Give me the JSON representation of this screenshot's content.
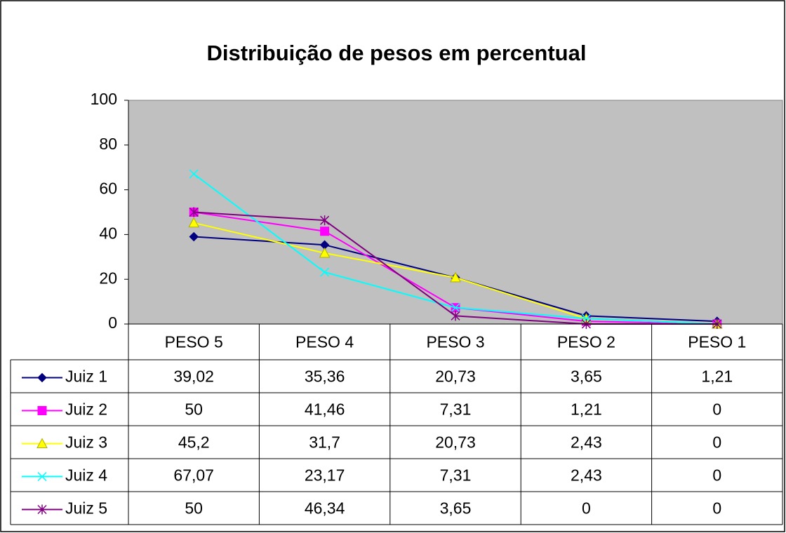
{
  "chart_data": {
    "type": "line",
    "title": "Distribuição de pesos em percentual",
    "categories": [
      "PESO 5",
      "PESO 4",
      "PESO 3",
      "PESO 2",
      "PESO 1"
    ],
    "ylim": [
      0,
      100
    ],
    "yticks": [
      0,
      20,
      40,
      60,
      80,
      100
    ],
    "series": [
      {
        "name": "Juiz 1",
        "color": "#000080",
        "marker": "diamond",
        "values": [
          39.02,
          35.36,
          20.73,
          3.65,
          1.21
        ],
        "value_labels": [
          "39,02",
          "35,36",
          "20,73",
          "3,65",
          "1,21"
        ]
      },
      {
        "name": "Juiz 2",
        "color": "#ff00ff",
        "marker": "square",
        "values": [
          50,
          41.46,
          7.31,
          1.21,
          0
        ],
        "value_labels": [
          "50",
          "41,46",
          "7,31",
          "1,21",
          "0"
        ]
      },
      {
        "name": "Juiz 3",
        "color": "#ffff00",
        "marker": "triangle",
        "values": [
          45.2,
          31.7,
          20.73,
          2.43,
          0
        ],
        "value_labels": [
          "45,2",
          "31,7",
          "20,73",
          "2,43",
          "0"
        ]
      },
      {
        "name": "Juiz 4",
        "color": "#00ffff",
        "marker": "x",
        "values": [
          67.07,
          23.17,
          7.31,
          2.43,
          0
        ],
        "value_labels": [
          "67,07",
          "23,17",
          "7,31",
          "2,43",
          "0"
        ]
      },
      {
        "name": "Juiz 5",
        "color": "#800080",
        "marker": "star",
        "values": [
          50,
          46.34,
          3.65,
          0,
          0
        ],
        "value_labels": [
          "50",
          "46,34",
          "3,65",
          "0",
          "0"
        ]
      }
    ]
  }
}
